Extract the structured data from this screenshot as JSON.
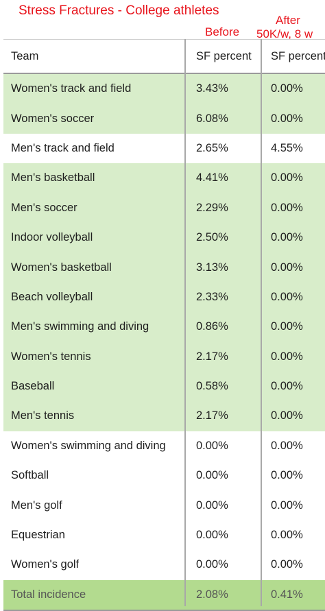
{
  "title": "Stress Fractures - College athletes",
  "col_before_label": "Before",
  "col_after_label_line1": "After",
  "col_after_label_line2": "50K/w, 8 w",
  "headers": {
    "team": "Team",
    "before": "SF percent",
    "after": "SF percent"
  },
  "rows": [
    {
      "team": "Women's track and field",
      "before": "3.43%",
      "after": "0.00%",
      "highlight": "green"
    },
    {
      "team": "Women's soccer",
      "before": "6.08%",
      "after": "0.00%",
      "highlight": "green"
    },
    {
      "team": "Men's track and field",
      "before": "2.65%",
      "after": "4.55%",
      "highlight": "white"
    },
    {
      "team": "Men's basketball",
      "before": "4.41%",
      "after": "0.00%",
      "highlight": "green"
    },
    {
      "team": "Men's soccer",
      "before": "2.29%",
      "after": "0.00%",
      "highlight": "green"
    },
    {
      "team": "Indoor volleyball",
      "before": "2.50%",
      "after": "0.00%",
      "highlight": "green"
    },
    {
      "team": "Women's basketball",
      "before": "3.13%",
      "after": "0.00%",
      "highlight": "green"
    },
    {
      "team": "Beach volleyball",
      "before": "2.33%",
      "after": "0.00%",
      "highlight": "green"
    },
    {
      "team": "Men's swimming and diving",
      "before": "0.86%",
      "after": "0.00%",
      "highlight": "green"
    },
    {
      "team": "Women's tennis",
      "before": "2.17%",
      "after": "0.00%",
      "highlight": "green"
    },
    {
      "team": "Baseball",
      "before": "0.58%",
      "after": "0.00%",
      "highlight": "green"
    },
    {
      "team": "Men's tennis",
      "before": "2.17%",
      "after": "0.00%",
      "highlight": "green"
    },
    {
      "team": "Women's swimming and diving",
      "before": "0.00%",
      "after": "0.00%",
      "highlight": "white"
    },
    {
      "team": "Softball",
      "before": "0.00%",
      "after": "0.00%",
      "highlight": "white"
    },
    {
      "team": "Men's golf",
      "before": "0.00%",
      "after": "0.00%",
      "highlight": "white"
    },
    {
      "team": "Equestrian",
      "before": "0.00%",
      "after": "0.00%",
      "highlight": "white"
    },
    {
      "team": "Women's golf",
      "before": "0.00%",
      "after": "0.00%",
      "highlight": "white"
    }
  ],
  "total": {
    "team": "Total incidence",
    "before": "2.08%",
    "after": "0.41%"
  }
}
